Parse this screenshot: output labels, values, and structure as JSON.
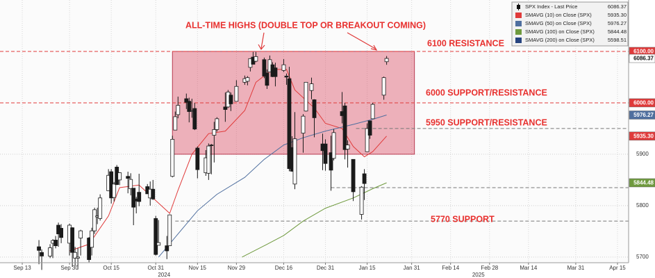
{
  "chart_data": {
    "type": "candlestick",
    "xlim": [
      "2024-09-05",
      "2025-04-19"
    ],
    "ylim": [
      5689,
      6200
    ],
    "yticks": [
      5700,
      5800,
      5900
    ],
    "xticks": [
      {
        "value": "2024-09-13",
        "label": "Sep 13"
      },
      {
        "value": "2024-09-30",
        "label": "Sep 30"
      },
      {
        "value": "2024-10-15",
        "label": "Oct 15"
      },
      {
        "value": "2024-10-31",
        "label": "Oct 31"
      },
      {
        "value": "2024-11-15",
        "label": "Nov 15"
      },
      {
        "value": "2024-11-29",
        "label": "Nov 29"
      },
      {
        "value": "2024-12-16",
        "label": "Dec 16"
      },
      {
        "value": "2024-12-31",
        "label": "Dec 31"
      },
      {
        "value": "2025-01-15",
        "label": "Jan 15"
      },
      {
        "value": "2025-01-31",
        "label": "Jan 31"
      },
      {
        "value": "2025-02-14",
        "label": "Feb 14"
      },
      {
        "value": "2025-02-28",
        "label": "Feb 28"
      },
      {
        "value": "2025-03-14",
        "label": "Mar 14"
      },
      {
        "value": "2025-03-31",
        "label": "Mar 31"
      },
      {
        "value": "2025-04-15",
        "label": "Apr 15"
      }
    ],
    "years": [
      2024,
      2025
    ],
    "grid": true,
    "candles": {
      "name": "SPX Index - Last Price",
      "last": {
        "value": 6086.37,
        "label": "6086.37"
      },
      "up_color": "#ffffff",
      "down_color": "#1a1a1a",
      "x": [
        "2024-09-19",
        "2024-09-20",
        "2024-09-23",
        "2024-09-24",
        "2024-09-25",
        "2024-09-26",
        "2024-09-27",
        "2024-09-30",
        "2024-10-01",
        "2024-10-02",
        "2024-10-03",
        "2024-10-04",
        "2024-10-07",
        "2024-10-08",
        "2024-10-09",
        "2024-10-10",
        "2024-10-11",
        "2024-10-14",
        "2024-10-15",
        "2024-10-16",
        "2024-10-17",
        "2024-10-18",
        "2024-10-21",
        "2024-10-22",
        "2024-10-23",
        "2024-10-24",
        "2024-10-25",
        "2024-10-28",
        "2024-10-29",
        "2024-10-30",
        "2024-10-31",
        "2024-11-01",
        "2024-11-04",
        "2024-11-05",
        "2024-11-06",
        "2024-11-07",
        "2024-11-08",
        "2024-11-11",
        "2024-11-12",
        "2024-11-13",
        "2024-11-14",
        "2024-11-15",
        "2024-11-18",
        "2024-11-19",
        "2024-11-20",
        "2024-11-21",
        "2024-11-22",
        "2024-11-25",
        "2024-11-26",
        "2024-11-27",
        "2024-11-29",
        "2024-12-02",
        "2024-12-03",
        "2024-12-04",
        "2024-12-05",
        "2024-12-06",
        "2024-12-09",
        "2024-12-10",
        "2024-12-11",
        "2024-12-12",
        "2024-12-13",
        "2024-12-16",
        "2024-12-17",
        "2024-12-18",
        "2024-12-19",
        "2024-12-20",
        "2024-12-23",
        "2024-12-24",
        "2024-12-26",
        "2024-12-27",
        "2024-12-30",
        "2024-12-31",
        "2025-01-02",
        "2025-01-03",
        "2025-01-06",
        "2025-01-07",
        "2025-01-08",
        "2025-01-10",
        "2025-01-13",
        "2025-01-14",
        "2025-01-15",
        "2025-01-16",
        "2025-01-17",
        "2025-01-21",
        "2025-01-22"
      ],
      "open": [
        5720,
        5709,
        5702,
        5727,
        5733,
        5762,
        5756,
        5727,
        5757,
        5698,
        5698,
        5737,
        5737,
        5719,
        5751,
        5778,
        5775,
        5829,
        5866,
        5816,
        5875,
        5850,
        5857,
        5833,
        5834,
        5813,
        5826,
        5837,
        5815,
        5832,
        5775,
        5723,
        5722,
        5722,
        5857,
        5947,
        5977,
        6008,
        6003,
        5985,
        5989,
        5912,
        5864,
        5863,
        5918,
        5937,
        5948,
        5992,
        5992,
        6015,
        6003,
        6040,
        6042,
        6069,
        6089,
        6081,
        6084,
        6058,
        6060,
        6074,
        6068,
        6063,
        6052,
        6047,
        5913,
        5842,
        5941,
        5984,
        6024,
        6006,
        5920,
        5920,
        5903,
        5892,
        5983,
        5994,
        5910,
        5890,
        5783,
        5862,
        5905,
        5965,
        5969,
        6015,
        6080
      ],
      "high": [
        5733,
        5715,
        5725,
        5735,
        5741,
        5767,
        5764,
        5765,
        5758,
        5720,
        5718,
        5753,
        5739,
        5757,
        5796,
        5796,
        5822,
        5871,
        5871,
        5846,
        5879,
        5865,
        5866,
        5863,
        5834,
        5817,
        5862,
        5842,
        5847,
        5850,
        5780,
        5772,
        5741,
        5783,
        5936,
        5983,
        6012,
        6018,
        6010,
        6008,
        6000,
        5915,
        5908,
        5921,
        5920,
        5963,
        5972,
        6020,
        6025,
        6020,
        6044,
        6053,
        6052,
        6087,
        6099,
        6099,
        6088,
        6065,
        6092,
        6079,
        6078,
        6085,
        6057,
        6070,
        5935,
        5982,
        5978,
        6040,
        6049,
        6007,
        5940,
        5929,
        5936,
        5949,
        6021,
        6000,
        5927,
        5890,
        5838,
        5871,
        5960,
        5965,
        6000,
        6051,
        6091
      ],
      "low": [
        5686,
        5675,
        5698,
        5698,
        5717,
        5720,
        5727,
        5703,
        5681,
        5683,
        5676,
        5703,
        5690,
        5703,
        5745,
        5764,
        5771,
        5829,
        5804,
        5808,
        5840,
        5840,
        5824,
        5820,
        5762,
        5785,
        5799,
        5823,
        5800,
        5811,
        5703,
        5723,
        5696,
        5722,
        5855,
        5947,
        5970,
        5988,
        5962,
        5971,
        5947,
        5853,
        5858,
        5850,
        5861,
        5884,
        5944,
        5963,
        5990,
        5984,
        6003,
        6035,
        6034,
        6061,
        6079,
        6079,
        6048,
        6027,
        6060,
        6050,
        6032,
        6060,
        6035,
        5867,
        5866,
        5832,
        5903,
        5983,
        6007,
        5933,
        5869,
        5868,
        5829,
        5888,
        5960,
        5890,
        5874,
        5809,
        5773,
        5811,
        5905,
        5930,
        5969,
        6006,
        6074
      ],
      "close": [
        5713,
        5702,
        5718,
        5732,
        5722,
        5745,
        5738,
        5762,
        5709,
        5709,
        5700,
        5751,
        5695,
        5751,
        5792,
        5780,
        5815,
        5859,
        5815,
        5842,
        5841,
        5864,
        5853,
        5851,
        5797,
        5809,
        5808,
        5823,
        5832,
        5813,
        5705,
        5728,
        5712,
        5782,
        5929,
        5973,
        5995,
        6001,
        5983,
        5985,
        5949,
        5870,
        5893,
        5916,
        5917,
        5948,
        5969,
        5987,
        6021,
        5998,
        6032,
        6047,
        6049,
        6086,
        6075,
        6090,
        6052,
        6034,
        6084,
        6051,
        6051,
        6074,
        6050,
        5872,
        5867,
        5930,
        5974,
        6040,
        6037,
        5971,
        5907,
        5882,
        5869,
        5942,
        5975,
        5909,
        5918,
        5827,
        5836,
        5843,
        5950,
        5937,
        5997,
        6049,
        6086.37
      ]
    },
    "series": [
      {
        "name": "SMAVG (10)  on Close (SPX)",
        "color": "#e03a3a",
        "last": {
          "value": 5935.3,
          "label": "5935.30"
        },
        "x": [
          "2024-09-30",
          "2024-10-07",
          "2024-10-14",
          "2024-10-18",
          "2024-10-25",
          "2024-10-31",
          "2024-11-05",
          "2024-11-08",
          "2024-11-13",
          "2024-11-19",
          "2024-11-25",
          "2024-12-02",
          "2024-12-06",
          "2024-12-12",
          "2024-12-17",
          "2024-12-20",
          "2024-12-27",
          "2024-12-31",
          "2025-01-06",
          "2025-01-10",
          "2025-01-14",
          "2025-01-17",
          "2025-01-22"
        ],
        "values": [
          5712,
          5725,
          5780,
          5835,
          5840,
          5810,
          5785,
          5830,
          5900,
          5940,
          5945,
          5985,
          6040,
          6065,
          6065,
          6025,
          5990,
          5960,
          5950,
          5915,
          5895,
          5905,
          5935.3
        ]
      },
      {
        "name": "SMAVG (50)  on Close (SPX)",
        "color": "#4f6f9f",
        "last": {
          "value": 5976.27,
          "label": "5976.27"
        },
        "x": [
          "2024-11-01",
          "2024-11-08",
          "2024-11-15",
          "2024-11-22",
          "2024-12-02",
          "2024-12-09",
          "2024-12-16",
          "2024-12-23",
          "2024-12-31",
          "2025-01-10",
          "2025-01-17",
          "2025-01-22"
        ],
        "values": [
          5700,
          5745,
          5790,
          5822,
          5855,
          5890,
          5918,
          5932,
          5945,
          5958,
          5968,
          5976.27
        ]
      },
      {
        "name": "SMAVG (100)  on Close (SPX)",
        "color": "#6f9a3e",
        "last": {
          "value": 5844.48,
          "label": "5844.48"
        },
        "x": [
          "2024-12-01",
          "2024-12-09",
          "2024-12-16",
          "2024-12-23",
          "2024-12-31",
          "2025-01-10",
          "2025-01-17",
          "2025-01-22"
        ],
        "values": [
          5700,
          5722,
          5742,
          5770,
          5795,
          5815,
          5833,
          5844.48
        ]
      },
      {
        "name": "SMAVG (200)  on Close (SPX)",
        "color": "#26437f",
        "last": {
          "value": 5598.51,
          "label": "5598.51"
        },
        "x": [],
        "values": []
      }
    ],
    "levels": [
      {
        "value": 6100,
        "color": "#e03a3a",
        "from": "2024-09-05"
      },
      {
        "value": 6000,
        "color": "#e03a3a",
        "from": "2024-09-05"
      },
      {
        "value": 5950,
        "color": "#777777",
        "from": "2025-01-11"
      },
      {
        "value": 5835,
        "color": "#777777",
        "from": "2025-01-02"
      },
      {
        "value": 5770,
        "color": "#777777",
        "from": "2024-11-07"
      }
    ],
    "zone": {
      "x": [
        "2024-11-06",
        "2025-02-01"
      ],
      "y": [
        5900,
        6100
      ],
      "color": "#d9475f"
    },
    "price_tags": [
      {
        "value": 6100,
        "label": "6100.00",
        "color": "#e03a3a"
      },
      {
        "value": 6086.37,
        "label": "6086.37",
        "color": "#ffffff"
      },
      {
        "value": 6000,
        "label": "6000.00",
        "color": "#e03a3a"
      },
      {
        "value": 5976.27,
        "label": "5976.27",
        "color": "#4f6f9f"
      },
      {
        "value": 5935.3,
        "label": "5935.30",
        "color": "#e03a3a"
      },
      {
        "value": 5844.48,
        "label": "5844.48",
        "color": "#6f9a3e"
      }
    ],
    "annotations": [
      "ALL-TIME HIGHS (DOUBLE TOP OR BREAKOUT COMING)",
      "6100 RESISTANCE",
      "6000 SUPPORT/RESISTANCE",
      "5950 SUPPORT/RESISTANCE",
      "5770 SUPPORT"
    ]
  }
}
